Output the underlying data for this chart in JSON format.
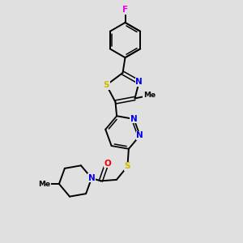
{
  "background_color": "#e0e0e0",
  "bond_color": "#000000",
  "atom_colors": {
    "F": "#ee00ee",
    "S": "#ccbb00",
    "N": "#0000ee",
    "O": "#ee0000",
    "C": "#000000"
  },
  "figsize": [
    3.0,
    3.0
  ],
  "dpi": 100,
  "xlim": [
    0,
    10
  ],
  "ylim": [
    0,
    10
  ]
}
